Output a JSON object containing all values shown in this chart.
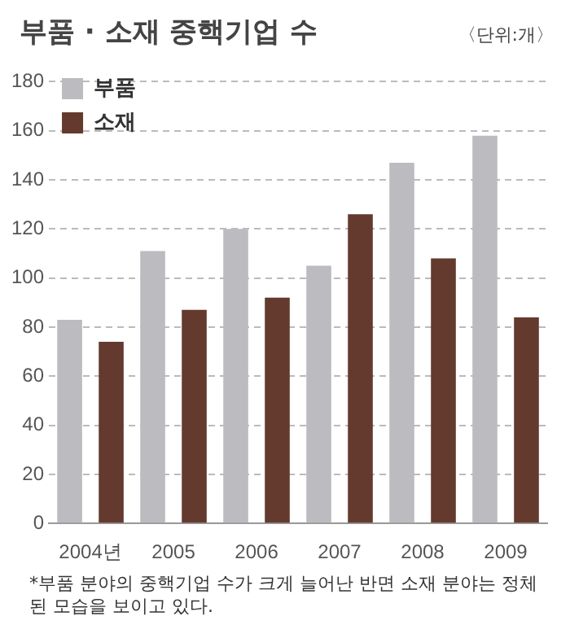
{
  "chart_data": {
    "type": "bar",
    "title": "부품 · 소재 중핵기업 수",
    "subtitle": "〈단위:개〉",
    "categories": [
      "2004년",
      "2005",
      "2006",
      "2007",
      "2008",
      "2009"
    ],
    "series": [
      {
        "name": "부품",
        "color": "#bcbcc0",
        "values": [
          83,
          111,
          120,
          105,
          147,
          158
        ]
      },
      {
        "name": "소재",
        "color": "#643a2f",
        "values": [
          74,
          87,
          92,
          126,
          108,
          84
        ]
      }
    ],
    "ylim": [
      0,
      180
    ],
    "yticks": [
      0,
      20,
      40,
      60,
      80,
      100,
      120,
      140,
      160,
      180
    ],
    "grid": "y",
    "legend": "top left",
    "annotations": [
      "*부품 분야의 중핵기업 수가 크게 늘어난 반면 소재 분야는 정체된 모습을 보이고 있다."
    ]
  }
}
